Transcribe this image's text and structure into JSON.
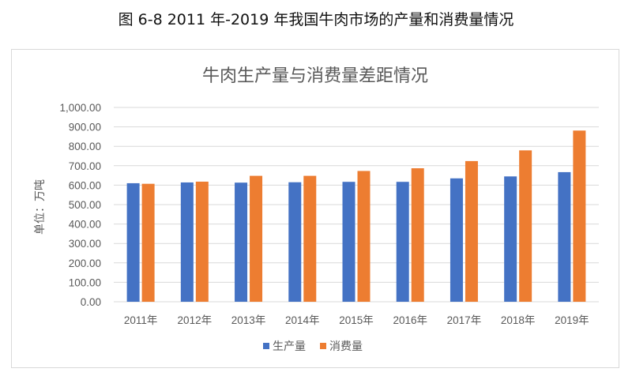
{
  "figure_caption": "图 6-8 2011 年-2019 年我国牛肉市场的产量和消费量情况",
  "colors": {
    "production": "#4472C4",
    "consumption": "#ED7D31",
    "grid": "#d9d9d9",
    "text": "#595959"
  },
  "chart_data": {
    "type": "bar",
    "title": "牛肉生产量与消费量差距情况",
    "xlabel": "",
    "ylabel": "单位：万吨",
    "ylim": [
      0,
      1000
    ],
    "y_ticks": [
      "0.00",
      "100.00",
      "200.00",
      "300.00",
      "400.00",
      "500.00",
      "600.00",
      "700.00",
      "800.00",
      "900.00",
      "1,000.00"
    ],
    "categories": [
      "2011年",
      "2012年",
      "2013年",
      "2014年",
      "2015年",
      "2016年",
      "2017年",
      "2018年",
      "2019年"
    ],
    "series": [
      {
        "name": "生产量",
        "values": [
          610,
          614,
          613,
          615,
          617,
          617,
          635,
          645,
          667
        ]
      },
      {
        "name": "消费量",
        "values": [
          607,
          618,
          648,
          648,
          673,
          687,
          724,
          779,
          881
        ]
      }
    ],
    "grid": true,
    "legend_position": "bottom"
  }
}
